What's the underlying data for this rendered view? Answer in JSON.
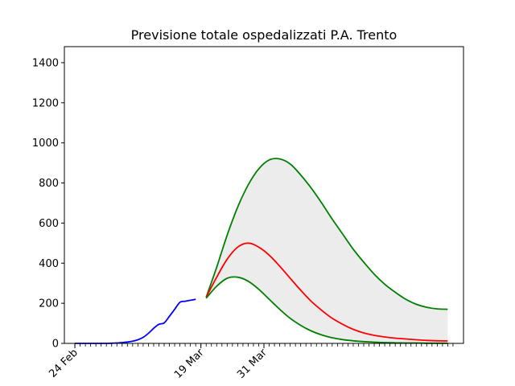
{
  "chart_data": {
    "type": "line",
    "title": "Previsione totale ospedalizzati P.A. Trento",
    "xlabel": "",
    "ylabel": "",
    "x_unit": "day index (0 = 24 Feb)",
    "xlim": [
      -2,
      74
    ],
    "ylim": [
      0,
      1480
    ],
    "yticks": [
      0,
      200,
      400,
      600,
      800,
      1000,
      1200,
      1400
    ],
    "xticks": [
      {
        "day": 0,
        "label": "24 Feb"
      },
      {
        "day": 24,
        "label": "19 Mar"
      },
      {
        "day": 36,
        "label": "31 Mar"
      }
    ],
    "minor_tick_days": {
      "start": 0,
      "end": 72,
      "step": 1
    },
    "grid": false,
    "legend": "none",
    "series": [
      {
        "color": "#0000ff",
        "x": [
          0,
          1,
          2,
          3,
          4,
          5,
          6,
          7,
          8,
          9,
          10,
          11,
          12,
          13,
          14,
          15,
          16,
          17,
          18,
          19,
          20,
          21,
          22,
          23
        ],
        "y": [
          0,
          0,
          0,
          0,
          0,
          0,
          0,
          1,
          2,
          4,
          7,
          11,
          18,
          30,
          50,
          75,
          95,
          102,
          135,
          170,
          205,
          210,
          215,
          220
        ]
      },
      {
        "color": "#008000",
        "x": [
          25,
          27,
          29,
          31,
          33,
          35,
          37,
          39,
          41,
          43,
          45,
          47,
          49,
          51,
          53,
          55,
          57,
          59,
          61,
          63,
          65,
          67,
          69,
          71
        ],
        "y": [
          230,
          380,
          540,
          680,
          790,
          870,
          915,
          920,
          895,
          840,
          775,
          700,
          620,
          545,
          470,
          405,
          345,
          295,
          255,
          220,
          195,
          180,
          172,
          170
        ]
      },
      {
        "color": "#ff0000",
        "x": [
          25,
          27,
          29,
          31,
          33,
          35,
          37,
          39,
          41,
          43,
          45,
          47,
          49,
          51,
          53,
          55,
          57,
          59,
          61,
          63,
          65,
          67,
          69,
          71
        ],
        "y": [
          230,
          330,
          420,
          480,
          500,
          480,
          440,
          385,
          325,
          265,
          210,
          165,
          125,
          95,
          70,
          52,
          40,
          32,
          26,
          22,
          18,
          15,
          13,
          12
        ]
      },
      {
        "color": "#008000",
        "x": [
          25,
          27,
          29,
          31,
          33,
          35,
          37,
          39,
          41,
          43,
          45,
          47,
          49,
          51,
          53,
          55,
          57,
          59,
          61,
          63,
          65,
          67,
          69,
          71
        ],
        "y": [
          225,
          285,
          325,
          330,
          310,
          270,
          220,
          170,
          125,
          90,
          62,
          42,
          28,
          19,
          13,
          9,
          6,
          4,
          3,
          2,
          2,
          1,
          1,
          1
        ]
      }
    ],
    "band": {
      "color": "#ececec",
      "upper_series": 1,
      "lower_series": 3
    }
  }
}
